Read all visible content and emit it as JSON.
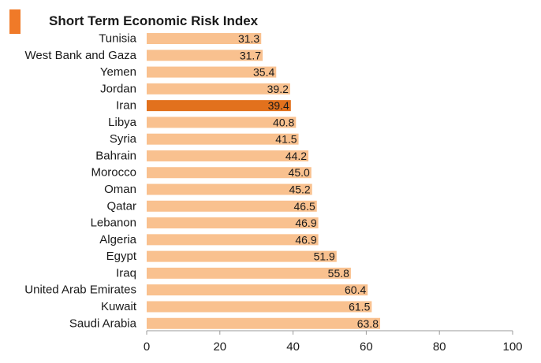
{
  "chart_data": {
    "type": "bar",
    "orientation": "horizontal",
    "title": "Short Term Economic Risk Index",
    "xlabel": "",
    "ylabel": "",
    "xlim": [
      0,
      100
    ],
    "xticks": [
      0,
      20,
      40,
      60,
      80,
      100
    ],
    "grid": false,
    "categories": [
      "Tunisia",
      "West Bank and Gaza",
      "Yemen",
      "Jordan",
      "Iran",
      "Libya",
      "Syria",
      "Bahrain",
      "Morocco",
      "Oman",
      "Qatar",
      "Lebanon",
      "Algeria",
      "Egypt",
      "Iraq",
      "United Arab Emirates",
      "Kuwait",
      "Saudi Arabia"
    ],
    "values": [
      31.3,
      31.7,
      35.4,
      39.2,
      39.4,
      40.8,
      41.5,
      44.2,
      45.0,
      45.2,
      46.5,
      46.9,
      46.9,
      51.9,
      55.8,
      60.4,
      61.5,
      63.8
    ],
    "value_labels": [
      "31.3",
      "31.7",
      "35.4",
      "39.2",
      "39.4",
      "40.8",
      "41.5",
      "44.2",
      "45.0",
      "45.2",
      "46.5",
      "46.9",
      "46.9",
      "51.9",
      "55.8",
      "60.4",
      "61.5",
      "63.8"
    ],
    "highlight_category": "Iran",
    "colors": {
      "bar": "#F9C18F",
      "highlight": "#E2711D",
      "title_accent": "#F07A28",
      "axis": "#9a9a9a"
    }
  }
}
